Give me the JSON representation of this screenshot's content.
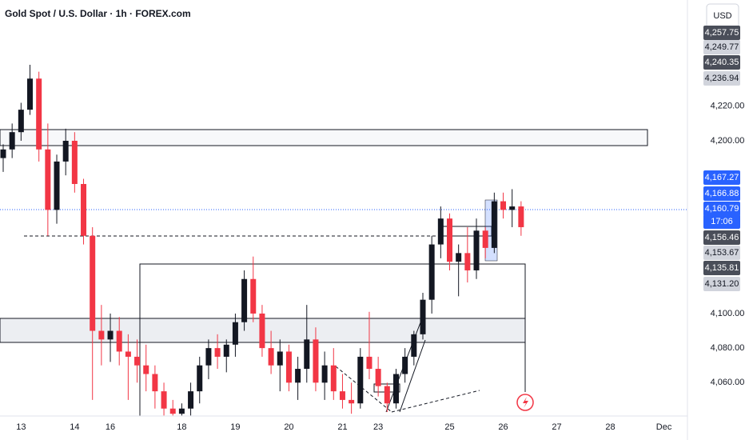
{
  "chart_data": {
    "type": "candlestick",
    "title": "Gold Spot / U.S. Dollar · 1h · FOREX.com",
    "currency": "USD",
    "up_color": "#131722",
    "down_color": "#f23645",
    "ylim": [
      4040.7,
      4281.5
    ],
    "yticks": [
      {
        "value": 4060,
        "label": "4,060.00"
      },
      {
        "value": 4080,
        "label": "4,080.00"
      },
      {
        "value": 4100,
        "label": "4,100.00"
      },
      {
        "value": 4200,
        "label": "4,200.00"
      },
      {
        "value": 4220,
        "label": "4,220.00"
      }
    ],
    "price_badges": [
      {
        "label": "4,257.75",
        "color": "#4a4e59"
      },
      {
        "label": "4,249.77",
        "color": "#d1d4dc"
      },
      {
        "label": "4,240.35",
        "color": "#4a4e59"
      },
      {
        "label": "4,236.94",
        "color": "#d1d4dc"
      },
      {
        "label": "4,167.27",
        "color": "#2962ff"
      },
      {
        "label": "4,166.88",
        "color": "#2962ff"
      },
      {
        "label": "4,160.79",
        "color": "#2962ff"
      },
      {
        "label": "17:06",
        "color": "#2962ff"
      },
      {
        "label": "4,156.46",
        "color": "#4a4e59"
      },
      {
        "label": "4,153.67",
        "color": "#d1d4dc"
      },
      {
        "label": "4,135.81",
        "color": "#4a4e59"
      },
      {
        "label": "4,131.20",
        "color": "#d1d4dc"
      }
    ],
    "categories": [
      null,
      null,
      "13",
      null,
      null,
      null,
      null,
      null,
      "14",
      null,
      null,
      null,
      "16",
      null,
      null,
      null,
      null,
      null,
      null,
      null,
      "18",
      null,
      null,
      null,
      null,
      null,
      "19",
      null,
      null,
      null,
      null,
      null,
      "20",
      null,
      null,
      null,
      null,
      null,
      "21",
      null,
      null,
      null,
      "23",
      null,
      null,
      null,
      null,
      null,
      null,
      null,
      "25",
      null,
      null,
      null,
      null,
      null,
      "26",
      null,
      null,
      null,
      null,
      null,
      "27",
      null,
      null,
      null,
      null,
      null,
      "28",
      null,
      null,
      null,
      null,
      null,
      "Dec",
      null
    ],
    "open": [
      4190,
      4195,
      4205,
      4218,
      4236,
      4195,
      4160,
      4188,
      4200,
      4175,
      4145,
      4090,
      4085,
      4090,
      4078,
      4075,
      4070,
      4065,
      4055,
      4045,
      4042,
      4045,
      4055,
      4070,
      4080,
      4075,
      4082,
      4095,
      4120,
      4100,
      4080,
      4070,
      4078,
      4060,
      4068,
      4085,
      4060,
      4070,
      4055,
      4050,
      4048,
      4075,
      4068,
      4058,
      4048,
      4065,
      4075,
      4088,
      4108,
      4140,
      4155,
      4130,
      4135,
      4125,
      4148,
      4138,
      4165,
      4160,
      4162,
      null,
      null,
      null,
      null,
      null,
      null,
      null,
      null,
      null,
      null,
      null,
      null,
      null,
      null,
      null,
      null,
      null
    ],
    "high": [
      4198,
      4210,
      4222,
      4244,
      4240,
      4210,
      4192,
      4207,
      4205,
      4178,
      4150,
      4105,
      4100,
      4098,
      4088,
      4085,
      4082,
      4070,
      4060,
      4050,
      4048,
      4060,
      4075,
      4085,
      4088,
      4085,
      4100,
      4125,
      4133,
      4105,
      4090,
      4085,
      4082,
      4075,
      4105,
      4092,
      4078,
      4080,
      4065,
      4060,
      4080,
      4101,
      4075,
      4060,
      4068,
      4080,
      4090,
      4112,
      4145,
      4162,
      4158,
      4140,
      4150,
      4155,
      4150,
      4170,
      4170,
      4172,
      4165,
      null,
      null,
      null,
      null,
      null,
      null,
      null,
      null,
      null,
      null,
      null,
      null,
      null,
      null,
      null,
      null,
      null
    ],
    "low": [
      4182,
      4190,
      4200,
      4215,
      4188,
      4145,
      4152,
      4180,
      4170,
      4140,
      4050,
      4070,
      4072,
      4070,
      4050,
      4060,
      4055,
      4045,
      4041,
      4041,
      4041,
      4041,
      4048,
      4062,
      4068,
      4066,
      4075,
      4090,
      4095,
      4075,
      4065,
      4055,
      4055,
      4050,
      4060,
      4055,
      4050,
      4050,
      4045,
      4042,
      4045,
      4062,
      4052,
      4043,
      4045,
      4060,
      4070,
      4085,
      4100,
      4132,
      4125,
      4110,
      4118,
      4120,
      4132,
      4135,
      4155,
      4150,
      4145,
      null,
      null,
      null,
      null,
      null,
      null,
      null,
      null,
      null,
      null,
      null,
      null,
      null,
      null,
      null,
      null,
      null
    ],
    "close": [
      4195,
      4205,
      4218,
      4236,
      4195,
      4160,
      4188,
      4200,
      4175,
      4145,
      4090,
      4085,
      4090,
      4078,
      4075,
      4070,
      4065,
      4055,
      4045,
      4042,
      4045,
      4055,
      4070,
      4080,
      4075,
      4082,
      4095,
      4120,
      4100,
      4080,
      4070,
      4078,
      4060,
      4068,
      4085,
      4060,
      4070,
      4055,
      4050,
      4048,
      4075,
      4068,
      4058,
      4048,
      4065,
      4075,
      4088,
      4108,
      4140,
      4155,
      4130,
      4135,
      4125,
      4148,
      4138,
      4165,
      4160,
      4162,
      4150,
      null,
      null,
      null,
      null,
      null,
      null,
      null,
      null,
      null,
      null,
      null,
      null,
      null,
      null,
      null,
      null,
      null
    ]
  }
}
